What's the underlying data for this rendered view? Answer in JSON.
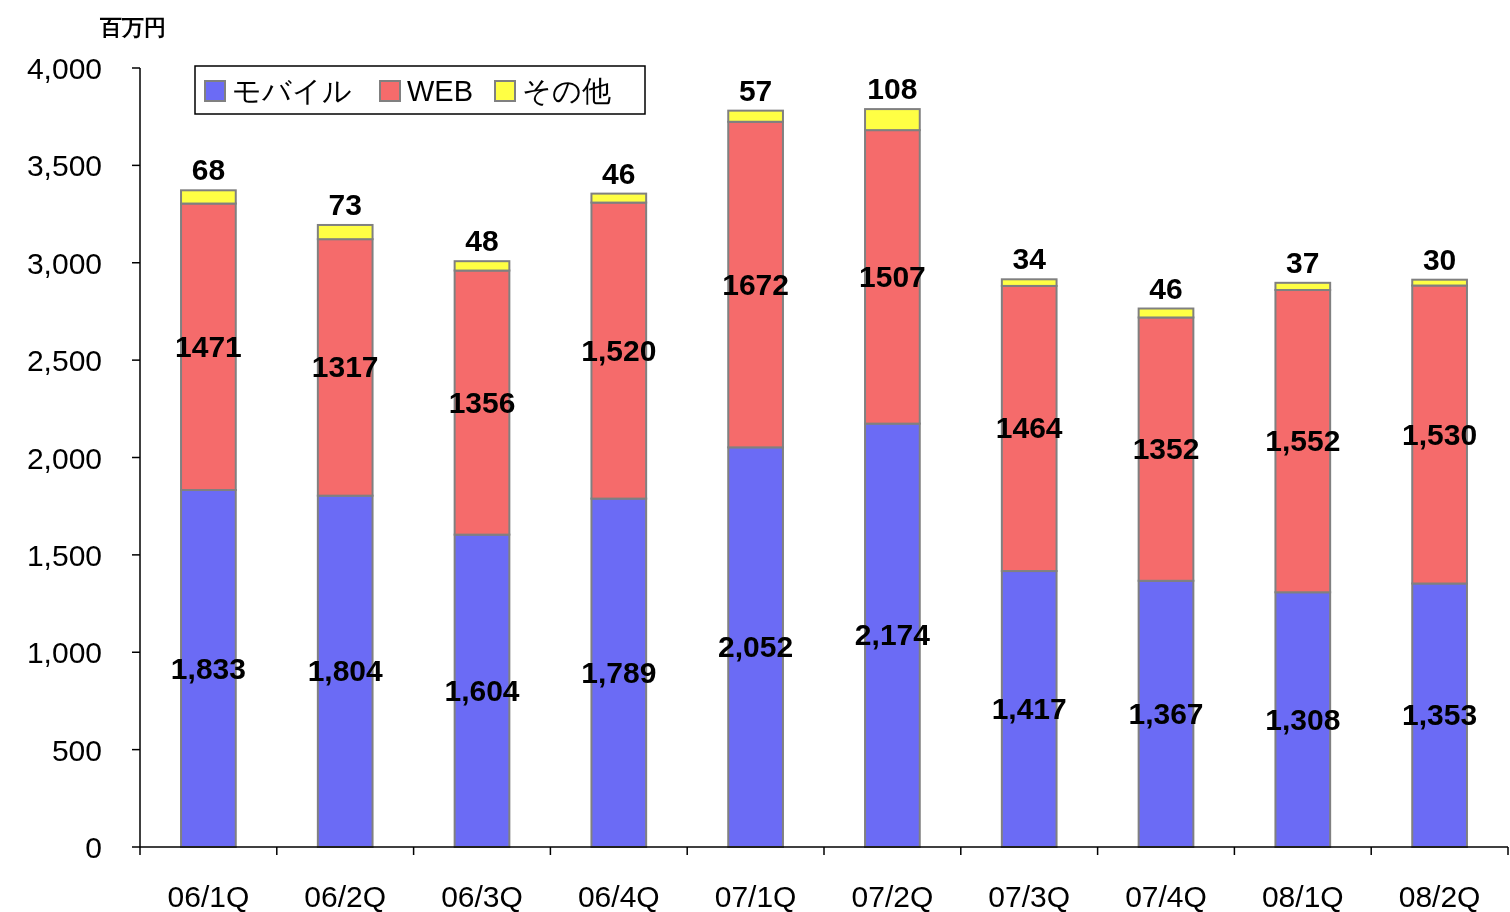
{
  "chart_data": {
    "type": "bar",
    "stacked": true,
    "ylabel": "百万円",
    "categories": [
      "06/1Q",
      "06/2Q",
      "06/3Q",
      "06/4Q",
      "07/1Q",
      "07/2Q",
      "07/3Q",
      "07/4Q",
      "08/1Q",
      "08/2Q"
    ],
    "series": [
      {
        "name": "モバイル",
        "color": "#6b6bf5",
        "values": [
          1833,
          1804,
          1604,
          1789,
          2052,
          2174,
          1417,
          1367,
          1308,
          1353
        ],
        "value_labels": [
          "1,833",
          "1,804",
          "1,604",
          "1,789",
          "2,052",
          "2,174",
          "1,417",
          "1,367",
          "1,308",
          "1,353"
        ]
      },
      {
        "name": "WEB",
        "color": "#f56b6b",
        "values": [
          1471,
          1317,
          1356,
          1520,
          1672,
          1507,
          1464,
          1352,
          1552,
          1530
        ],
        "value_labels": [
          "1471",
          "1317",
          "1356",
          "1,520",
          "1672",
          "1507",
          "1464",
          "1352",
          "1,552",
          "1,530"
        ]
      },
      {
        "name": "その他",
        "color": "#ffff44",
        "values": [
          68,
          73,
          48,
          46,
          57,
          108,
          34,
          46,
          37,
          30
        ],
        "value_labels": [
          "68",
          "73",
          "48",
          "46",
          "57",
          "108",
          "34",
          "46",
          "37",
          "30"
        ]
      }
    ],
    "ylim": [
      0,
      4000
    ],
    "yticks": [
      {
        "value": 0,
        "label": "0"
      },
      {
        "value": 500,
        "label": "500"
      },
      {
        "value": 1000,
        "label": "1,000"
      },
      {
        "value": 1500,
        "label": "1,500"
      },
      {
        "value": 2000,
        "label": "2,000"
      },
      {
        "value": 2500,
        "label": "2,500"
      },
      {
        "value": 3000,
        "label": "3,000"
      },
      {
        "value": 3500,
        "label": "3,500"
      },
      {
        "value": 4000,
        "label": "4,000"
      }
    ],
    "legend": "top left",
    "grid": false
  }
}
